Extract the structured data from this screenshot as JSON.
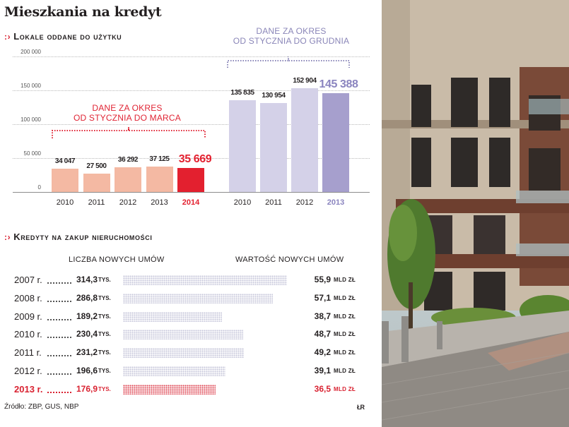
{
  "title": "Mieszkania na kredyt",
  "bullet": ":›",
  "section1": {
    "heading": "Lokale oddane do użytku"
  },
  "note_left": {
    "line1": "DANE ZA OKRES",
    "line2": "OD STYCZNIA DO MARCA"
  },
  "note_right": {
    "line1": "DANE ZA OKRES",
    "line2": "OD STYCZNIA DO GRUDNIA"
  },
  "y_ticks": [
    "200 000",
    "150 000",
    "100 000",
    "50 000",
    "0"
  ],
  "chart_data": [
    {
      "type": "bar",
      "title": "Lokale oddane do użytku",
      "subtitle": "DANE ZA OKRES OD STYCZNIA DO MARCA",
      "categories": [
        "2010",
        "2011",
        "2012",
        "2013",
        "2014"
      ],
      "values": [
        34047,
        27500,
        36292,
        37125,
        35669
      ],
      "value_labels": [
        "34 047",
        "27 500",
        "36 292",
        "37 125",
        "35 669"
      ],
      "highlight_index": 4,
      "ylim": [
        0,
        200000
      ],
      "yticks": [
        0,
        50000,
        100000,
        150000,
        200000
      ],
      "grid": true,
      "colors": {
        "bar": "#f4b9a3",
        "highlight": "#e3202f"
      }
    },
    {
      "type": "bar",
      "title": "Lokale oddane do użytku",
      "subtitle": "DANE ZA OKRES OD STYCZNIA DO GRUDNIA",
      "categories": [
        "2010",
        "2011",
        "2012",
        "2013"
      ],
      "values": [
        135835,
        130954,
        152904,
        145388
      ],
      "value_labels": [
        "135 835",
        "130 954",
        "152 904",
        "145 388"
      ],
      "highlight_index": 3,
      "ylim": [
        0,
        200000
      ],
      "grid": true,
      "colors": {
        "bar": "#d4d1e8",
        "highlight": "#a69fcd",
        "highlight_label": "#8a84bf"
      }
    },
    {
      "type": "table",
      "title": "Kredyty na zakup nieruchomości",
      "columns": [
        "Liczba nowych umów",
        "Wartość nowych umów"
      ],
      "rows": [
        {
          "year": "2007 r.",
          "count": "314,3",
          "count_unit": "TYS.",
          "value": "55,9",
          "value_unit": "MLD ZŁ",
          "count_num": 314.3,
          "value_num": 55.9
        },
        {
          "year": "2008 r.",
          "count": "286,8",
          "count_unit": "TYS.",
          "value": "57,1",
          "value_unit": "MLD ZŁ",
          "count_num": 286.8,
          "value_num": 57.1
        },
        {
          "year": "2009 r.",
          "count": "189,2",
          "count_unit": "TYS.",
          "value": "38,7",
          "value_unit": "MLD ZŁ",
          "count_num": 189.2,
          "value_num": 38.7
        },
        {
          "year": "2010 r.",
          "count": "230,4",
          "count_unit": "TYS.",
          "value": "48,7",
          "value_unit": "MLD ZŁ",
          "count_num": 230.4,
          "value_num": 48.7
        },
        {
          "year": "2011 r.",
          "count": "231,2",
          "count_unit": "TYS.",
          "value": "49,2",
          "value_unit": "MLD ZŁ",
          "count_num": 231.2,
          "value_num": 49.2
        },
        {
          "year": "2012 r.",
          "count": "196,6",
          "count_unit": "TYS.",
          "value": "39,1",
          "value_unit": "MLD ZŁ",
          "count_num": 196.6,
          "value_num": 39.1
        },
        {
          "year": "2013 r.",
          "count": "176,9",
          "count_unit": "TYS.",
          "value": "36,5",
          "value_unit": "MLD ZŁ",
          "count_num": 176.9,
          "value_num": 36.5,
          "highlight": true
        }
      ]
    }
  ],
  "section2": {
    "heading": "Kredyty na zakup nieruchomości",
    "col1": "LICZBA NOWYCH UMÓW",
    "col2": "WARTOŚĆ NOWYCH UMÓW"
  },
  "source": "Źródło: ZBP, GUS, NBP",
  "credit": "ŁR"
}
